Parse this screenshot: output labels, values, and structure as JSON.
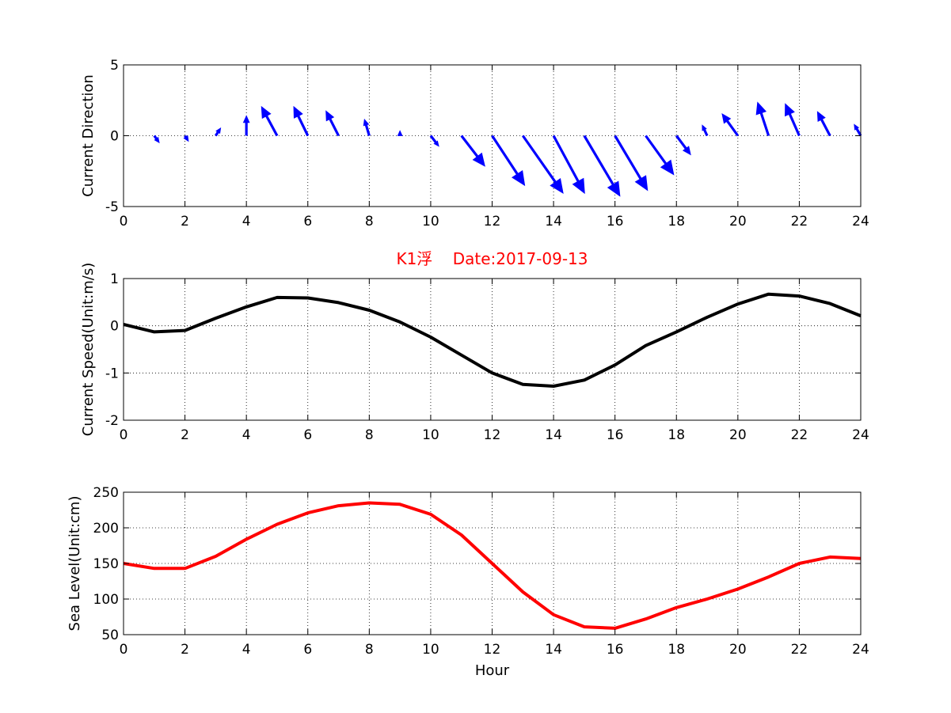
{
  "chart_data": [
    {
      "type": "quiver",
      "title": "",
      "xlabel": "",
      "ylabel": "Current Direction",
      "xlim": [
        0,
        24
      ],
      "ylim": [
        -5,
        5
      ],
      "xticks": [
        "0",
        "2",
        "4",
        "6",
        "8",
        "10",
        "12",
        "14",
        "16",
        "18",
        "20",
        "22",
        "24"
      ],
      "yticks": [
        "-5",
        "0",
        "5"
      ],
      "grid": true,
      "color": "#0000ff",
      "x": [
        1,
        2,
        3,
        4,
        5,
        6,
        7,
        8,
        9,
        10,
        11,
        12,
        13,
        14,
        15,
        16,
        17,
        18,
        19,
        20,
        21,
        22,
        23,
        24
      ],
      "u": [
        0.15,
        0.1,
        0.15,
        0,
        -0.5,
        -0.45,
        -0.4,
        -0.15,
        0,
        0.25,
        0.75,
        1.05,
        1.3,
        1.0,
        1.15,
        1.05,
        0.9,
        0.45,
        -0.15,
        -0.5,
        -0.35,
        -0.45,
        -0.4,
        -0.2
      ],
      "v": [
        -0.45,
        -0.35,
        0.5,
        1.35,
        2.0,
        2.0,
        1.7,
        1.1,
        0.3,
        -0.7,
        -2.1,
        -3.45,
        -4.0,
        -4.0,
        -4.2,
        -3.8,
        -2.7,
        -1.3,
        0.7,
        1.5,
        2.3,
        2.2,
        1.65,
        0.75
      ]
    },
    {
      "type": "line",
      "title": "K1浮    Date:2017-09-13",
      "xlabel": "",
      "ylabel": "Current Speed(Unit:m/s)",
      "xlim": [
        0,
        24
      ],
      "ylim": [
        -2,
        1
      ],
      "xticks": [
        "0",
        "2",
        "4",
        "6",
        "8",
        "10",
        "12",
        "14",
        "16",
        "18",
        "20",
        "22",
        "24"
      ],
      "yticks": [
        "-2",
        "-1",
        "0",
        "1"
      ],
      "grid": true,
      "color": "#000000",
      "x": [
        0,
        1,
        2,
        3,
        4,
        5,
        6,
        7,
        8,
        9,
        10,
        11,
        12,
        13,
        14,
        15,
        16,
        17,
        18,
        19,
        20,
        21,
        22,
        23,
        24
      ],
      "values": [
        0.03,
        -0.13,
        -0.1,
        0.16,
        0.4,
        0.6,
        0.59,
        0.49,
        0.33,
        0.08,
        -0.24,
        -0.62,
        -1.0,
        -1.24,
        -1.28,
        -1.15,
        -0.83,
        -0.42,
        -0.13,
        0.18,
        0.46,
        0.67,
        0.63,
        0.47,
        0.21
      ]
    },
    {
      "type": "line",
      "title": "",
      "xlabel": "Hour",
      "ylabel": "Sea Level(Unit:cm)",
      "xlim": [
        0,
        24
      ],
      "ylim": [
        50,
        250
      ],
      "xticks": [
        "0",
        "2",
        "4",
        "6",
        "8",
        "10",
        "12",
        "14",
        "16",
        "18",
        "20",
        "22",
        "24"
      ],
      "yticks": [
        "50",
        "100",
        "150",
        "200",
        "250"
      ],
      "grid": true,
      "color": "#ff0000",
      "x": [
        0,
        1,
        2,
        3,
        4,
        5,
        6,
        7,
        8,
        9,
        10,
        11,
        12,
        13,
        14,
        15,
        16,
        17,
        18,
        19,
        20,
        21,
        22,
        23,
        24
      ],
      "values": [
        150,
        143,
        143,
        160,
        184,
        205,
        221,
        231,
        235,
        233,
        219,
        190,
        150,
        110,
        78,
        61,
        59,
        72,
        88,
        100,
        114,
        131,
        150,
        159,
        157
      ]
    }
  ]
}
